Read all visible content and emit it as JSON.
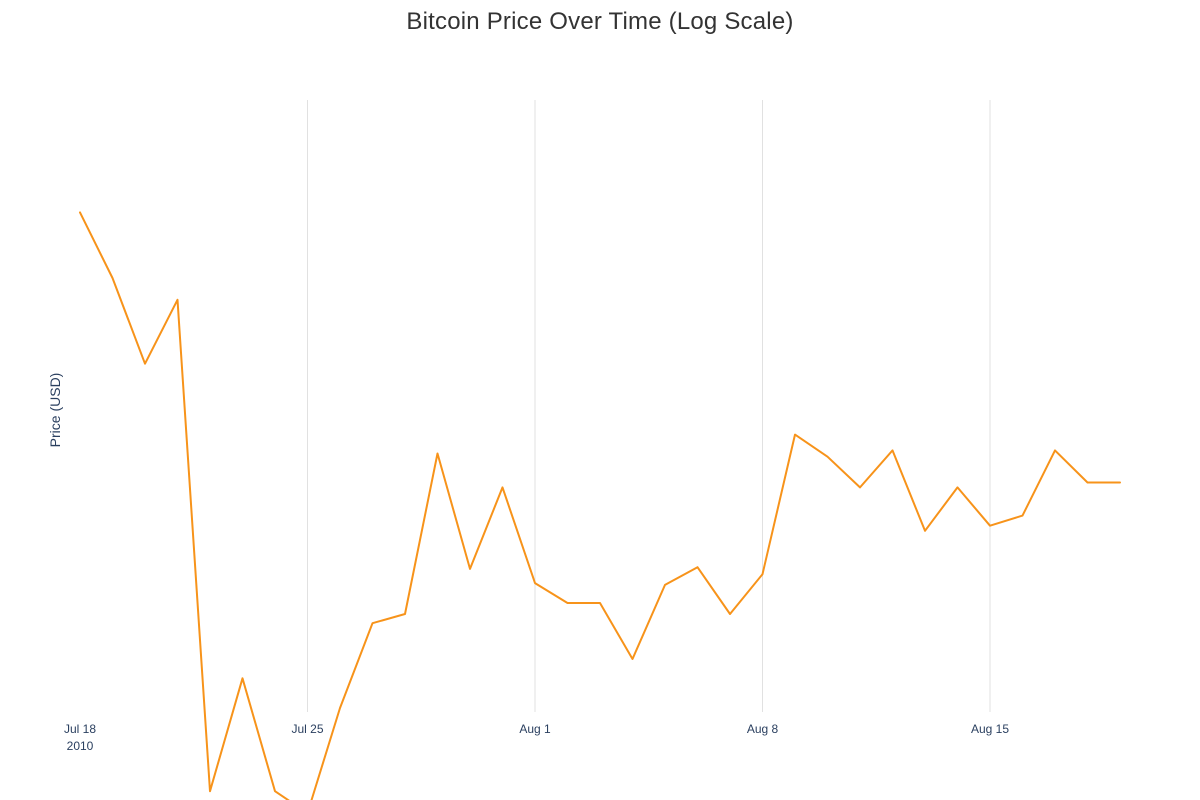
{
  "chart_data": {
    "type": "line",
    "title": "Bitcoin Price Over Time (Log Scale)",
    "xlabel": "",
    "ylabel": "Price (USD)",
    "y_scale": "log",
    "y_tick_labels_visible": false,
    "grid": {
      "x": true,
      "y": false
    },
    "line_color": "#f7931a",
    "x_ticks": [
      {
        "date": "2010-07-18",
        "label": "Jul 18",
        "sublabel": "2010"
      },
      {
        "date": "2010-07-25",
        "label": "Jul 25",
        "sublabel": ""
      },
      {
        "date": "2010-08-01",
        "label": "Aug 1",
        "sublabel": ""
      },
      {
        "date": "2010-08-08",
        "label": "Aug 8",
        "sublabel": ""
      },
      {
        "date": "2010-08-15",
        "label": "Aug 15",
        "sublabel": ""
      }
    ],
    "xlim": [
      "2010-07-18",
      "2010-08-19"
    ],
    "ylim": [
      0.0543,
      0.0951
    ],
    "series": [
      {
        "x": [
          "2010-07-18",
          "2010-07-19",
          "2010-07-20",
          "2010-07-21",
          "2010-07-22",
          "2010-07-23",
          "2010-07-24",
          "2010-07-25",
          "2010-07-26",
          "2010-07-27",
          "2010-07-28",
          "2010-07-29",
          "2010-07-30",
          "2010-07-31",
          "2010-08-01",
          "2010-08-02",
          "2010-08-03",
          "2010-08-04",
          "2010-08-05",
          "2010-08-06",
          "2010-08-07",
          "2010-08-08",
          "2010-08-09",
          "2010-08-10",
          "2010-08-11",
          "2010-08-12",
          "2010-08-13",
          "2010-08-14",
          "2010-08-15",
          "2010-08-16",
          "2010-08-17",
          "2010-08-18",
          "2010-08-19"
        ],
        "y": [
          0.0858,
          0.0808,
          0.0747,
          0.0792,
          0.0505,
          0.056,
          0.0505,
          0.0495,
          0.0545,
          0.0589,
          0.0594,
          0.0688,
          0.0619,
          0.0667,
          0.0611,
          0.06,
          0.06,
          0.057,
          0.061,
          0.062,
          0.0594,
          0.0616,
          0.07,
          0.0686,
          0.0667,
          0.069,
          0.0641,
          0.0667,
          0.0644,
          0.065,
          0.069,
          0.067,
          0.067
        ]
      }
    ]
  }
}
